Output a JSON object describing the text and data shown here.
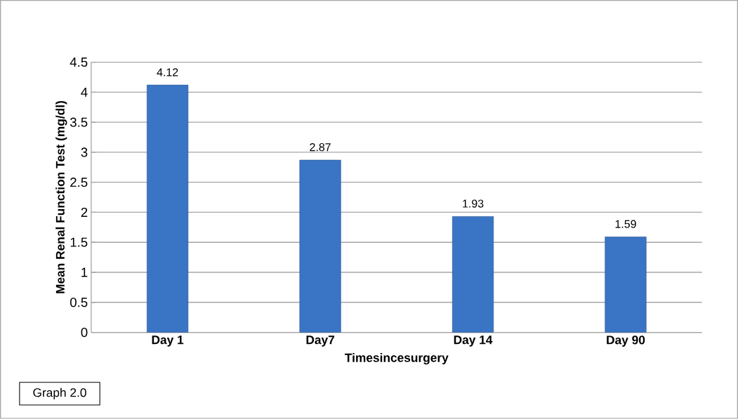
{
  "chart_data": {
    "type": "bar",
    "xlabel": "Timesincesurgery",
    "ylabel": "Mean Renal Function Test (mg/dl)",
    "categories": [
      "Day 1",
      "Day7",
      "Day 14",
      "Day 90"
    ],
    "values": [
      4.12,
      2.87,
      1.93,
      1.59
    ],
    "color": "#3a74c4",
    "ylim": [
      0,
      4.5
    ],
    "yticks": [
      0,
      0.5,
      1,
      1.5,
      2,
      2.5,
      3,
      3.5,
      4,
      4.5
    ],
    "grid": "y",
    "data_labels": true,
    "annotations": [
      "Graph 2.0"
    ]
  }
}
